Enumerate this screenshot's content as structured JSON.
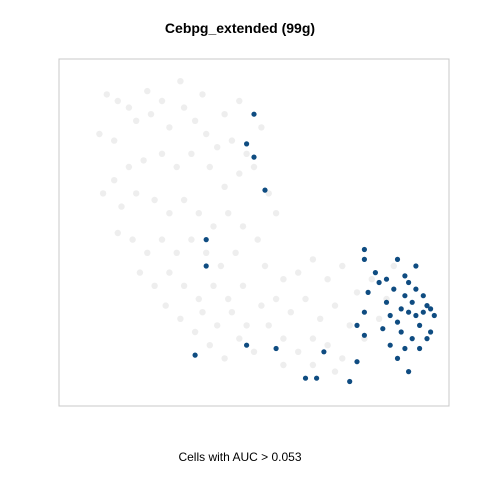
{
  "chart_data": {
    "type": "scatter",
    "title": "Cebpg_extended (99g)",
    "xlabel": "Cells with AUC > 0.053",
    "ylabel": "",
    "grid": false,
    "axes_ticks": false,
    "colors": {
      "background_points": "#d9d9d9",
      "highlight_points": "#0f4c81",
      "frame": "#c8c8c8"
    },
    "series": [
      {
        "highlight": false,
        "points": [
          [
            0.1,
            0.92
          ],
          [
            0.13,
            0.9
          ],
          [
            0.16,
            0.88
          ],
          [
            0.08,
            0.8
          ],
          [
            0.12,
            0.78
          ],
          [
            0.18,
            0.84
          ],
          [
            0.22,
            0.86
          ],
          [
            0.25,
            0.9
          ],
          [
            0.21,
            0.93
          ],
          [
            0.27,
            0.82
          ],
          [
            0.31,
            0.88
          ],
          [
            0.34,
            0.84
          ],
          [
            0.37,
            0.8
          ],
          [
            0.4,
            0.76
          ],
          [
            0.44,
            0.78
          ],
          [
            0.48,
            0.74
          ],
          [
            0.5,
            0.7
          ],
          [
            0.46,
            0.68
          ],
          [
            0.42,
            0.64
          ],
          [
            0.38,
            0.7
          ],
          [
            0.33,
            0.74
          ],
          [
            0.29,
            0.7
          ],
          [
            0.25,
            0.74
          ],
          [
            0.2,
            0.72
          ],
          [
            0.16,
            0.7
          ],
          [
            0.12,
            0.66
          ],
          [
            0.09,
            0.62
          ],
          [
            0.14,
            0.58
          ],
          [
            0.18,
            0.62
          ],
          [
            0.23,
            0.6
          ],
          [
            0.27,
            0.56
          ],
          [
            0.31,
            0.6
          ],
          [
            0.35,
            0.56
          ],
          [
            0.39,
            0.52
          ],
          [
            0.43,
            0.56
          ],
          [
            0.47,
            0.52
          ],
          [
            0.51,
            0.48
          ],
          [
            0.45,
            0.44
          ],
          [
            0.41,
            0.4
          ],
          [
            0.37,
            0.44
          ],
          [
            0.33,
            0.48
          ],
          [
            0.29,
            0.44
          ],
          [
            0.25,
            0.48
          ],
          [
            0.21,
            0.44
          ],
          [
            0.17,
            0.48
          ],
          [
            0.13,
            0.5
          ],
          [
            0.19,
            0.38
          ],
          [
            0.23,
            0.34
          ],
          [
            0.27,
            0.38
          ],
          [
            0.31,
            0.34
          ],
          [
            0.35,
            0.3
          ],
          [
            0.39,
            0.34
          ],
          [
            0.43,
            0.3
          ],
          [
            0.47,
            0.34
          ],
          [
            0.3,
            0.96
          ],
          [
            0.36,
            0.92
          ],
          [
            0.42,
            0.86
          ],
          [
            0.46,
            0.9
          ],
          [
            0.52,
            0.82
          ],
          [
            0.54,
            0.62
          ],
          [
            0.56,
            0.56
          ],
          [
            0.53,
            0.4
          ],
          [
            0.58,
            0.36
          ],
          [
            0.3,
            0.24
          ],
          [
            0.34,
            0.2
          ],
          [
            0.38,
            0.16
          ],
          [
            0.42,
            0.12
          ],
          [
            0.46,
            0.18
          ],
          [
            0.5,
            0.14
          ],
          [
            0.54,
            0.22
          ],
          [
            0.58,
            0.18
          ],
          [
            0.62,
            0.14
          ],
          [
            0.66,
            0.1
          ],
          [
            0.7,
            0.16
          ],
          [
            0.74,
            0.12
          ],
          [
            0.6,
            0.26
          ],
          [
            0.64,
            0.3
          ],
          [
            0.68,
            0.24
          ],
          [
            0.72,
            0.28
          ],
          [
            0.76,
            0.22
          ],
          [
            0.8,
            0.18
          ],
          [
            0.84,
            0.24
          ],
          [
            0.78,
            0.32
          ],
          [
            0.82,
            0.36
          ],
          [
            0.86,
            0.3
          ],
          [
            0.62,
            0.38
          ],
          [
            0.66,
            0.42
          ],
          [
            0.7,
            0.36
          ],
          [
            0.74,
            0.4
          ],
          [
            0.56,
            0.3
          ],
          [
            0.36,
            0.26
          ],
          [
            0.4,
            0.22
          ],
          [
            0.44,
            0.26
          ],
          [
            0.48,
            0.22
          ],
          [
            0.52,
            0.28
          ],
          [
            0.88,
            0.4
          ],
          [
            0.72,
            0.08
          ],
          [
            0.66,
            0.18
          ],
          [
            0.58,
            0.1
          ],
          [
            0.26,
            0.28
          ]
        ]
      },
      {
        "highlight": true,
        "points": [
          [
            0.5,
            0.86
          ],
          [
            0.48,
            0.77
          ],
          [
            0.5,
            0.73
          ],
          [
            0.53,
            0.63
          ],
          [
            0.37,
            0.48
          ],
          [
            0.37,
            0.4
          ],
          [
            0.34,
            0.13
          ],
          [
            0.48,
            0.16
          ],
          [
            0.56,
            0.15
          ],
          [
            0.69,
            0.14
          ],
          [
            0.67,
            0.06
          ],
          [
            0.64,
            0.06
          ],
          [
            0.76,
            0.05
          ],
          [
            0.78,
            0.11
          ],
          [
            0.8,
            0.19
          ],
          [
            0.78,
            0.22
          ],
          [
            0.8,
            0.26
          ],
          [
            0.81,
            0.32
          ],
          [
            0.83,
            0.38
          ],
          [
            0.8,
            0.42
          ],
          [
            0.84,
            0.35
          ],
          [
            0.86,
            0.29
          ],
          [
            0.87,
            0.25
          ],
          [
            0.89,
            0.23
          ],
          [
            0.9,
            0.27
          ],
          [
            0.91,
            0.31
          ],
          [
            0.92,
            0.35
          ],
          [
            0.93,
            0.29
          ],
          [
            0.94,
            0.25
          ],
          [
            0.95,
            0.22
          ],
          [
            0.96,
            0.26
          ],
          [
            0.97,
            0.28
          ],
          [
            0.98,
            0.27
          ],
          [
            0.99,
            0.25
          ],
          [
            0.96,
            0.31
          ],
          [
            0.94,
            0.33
          ],
          [
            0.92,
            0.26
          ],
          [
            0.9,
            0.2
          ],
          [
            0.93,
            0.18
          ],
          [
            0.95,
            0.15
          ],
          [
            0.97,
            0.18
          ],
          [
            0.91,
            0.15
          ],
          [
            0.89,
            0.12
          ],
          [
            0.87,
            0.16
          ],
          [
            0.85,
            0.21
          ],
          [
            0.88,
            0.33
          ],
          [
            0.91,
            0.37
          ],
          [
            0.94,
            0.4
          ],
          [
            0.89,
            0.42
          ],
          [
            0.86,
            0.36
          ],
          [
            0.92,
            0.08
          ],
          [
            0.8,
            0.45
          ],
          [
            0.98,
            0.2
          ]
        ]
      }
    ],
    "xlim": [
      0,
      1
    ],
    "ylim": [
      0,
      1
    ]
  }
}
